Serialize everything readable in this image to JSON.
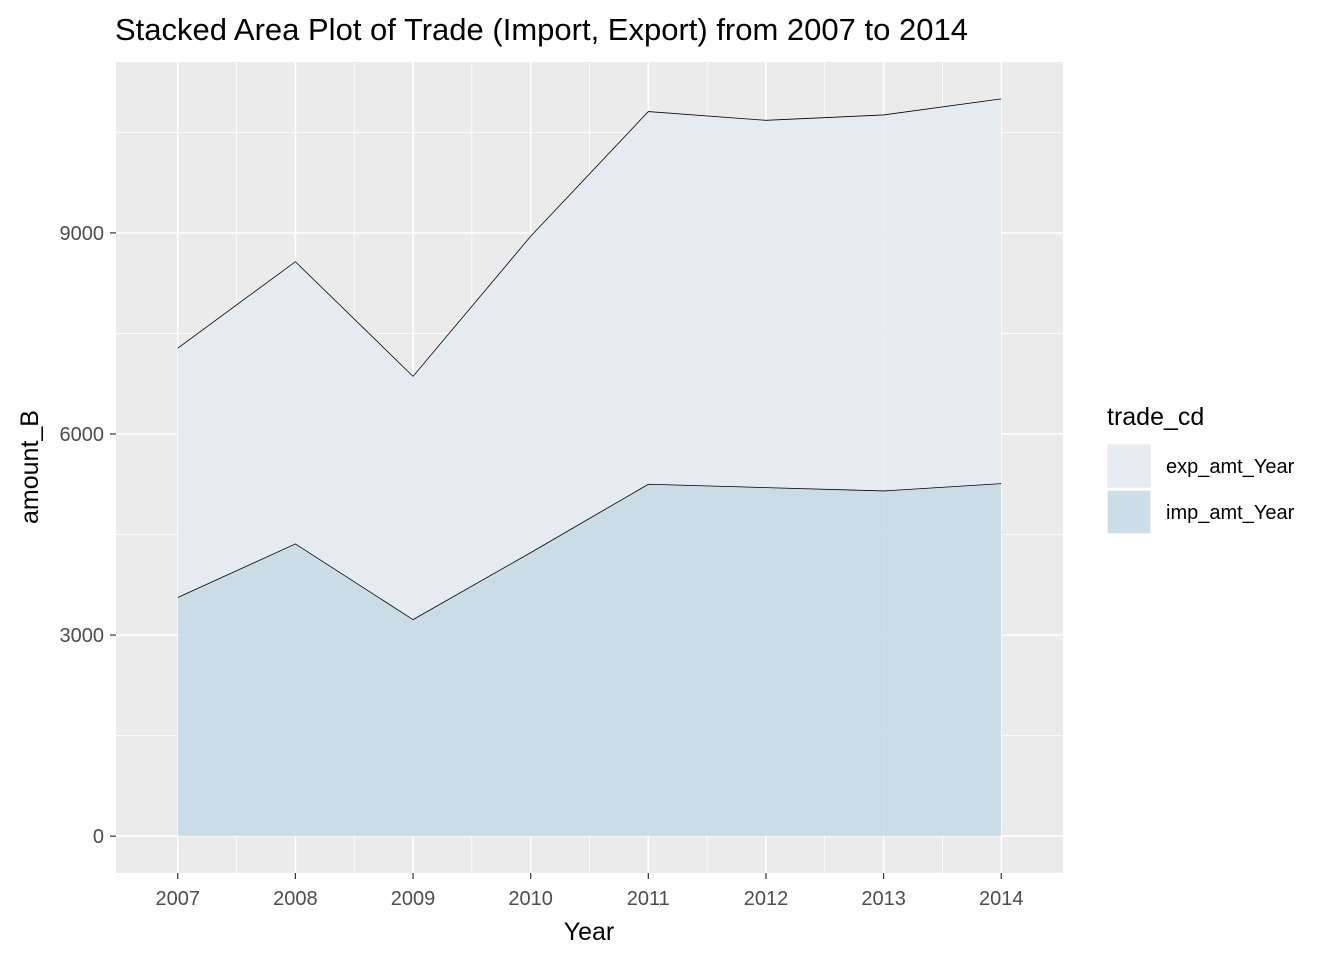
{
  "chart_data": {
    "type": "area",
    "stacked": true,
    "title": "Stacked Area Plot of Trade (Import, Export) from 2007 to 2014",
    "xlabel": "Year",
    "ylabel": "amount_B",
    "x": [
      "2007",
      "2008",
      "2009",
      "2010",
      "2011",
      "2012",
      "2013",
      "2014"
    ],
    "series": [
      {
        "name": "imp_amt_Year",
        "color": "#c6dbe7",
        "values": [
          3560,
          4360,
          3230,
          4230,
          5250,
          5200,
          5150,
          5260
        ]
      },
      {
        "name": "exp_amt_Year",
        "color": "#e4ebf2",
        "values": [
          3720,
          4210,
          3630,
          4720,
          5560,
          5480,
          5610,
          5740
        ]
      }
    ],
    "y_ticks": [
      0,
      3000,
      6000,
      9000
    ],
    "y_tick_labels": [
      "0",
      "3000",
      "6000",
      "9000"
    ],
    "ylim": [
      -550,
      11550
    ],
    "grid": true,
    "panel_background": "#ebebeb",
    "legend": {
      "title": "trade_cd",
      "placement": "right",
      "entries": [
        "exp_amt_Year",
        "imp_amt_Year"
      ]
    }
  }
}
